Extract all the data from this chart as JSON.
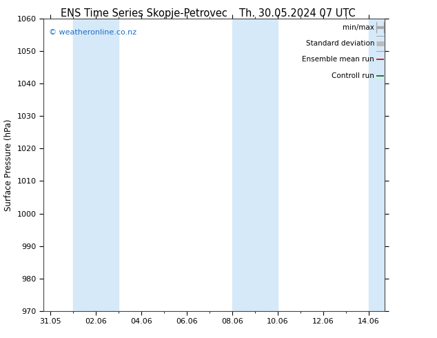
{
  "title": "ENS Time Series Skopje-Petrovec",
  "title2": "Th. 30.05.2024 07 UTC",
  "ylabel": "Surface Pressure (hPa)",
  "ylim": [
    970,
    1060
  ],
  "yticks": [
    970,
    980,
    990,
    1000,
    1010,
    1020,
    1030,
    1040,
    1050,
    1060
  ],
  "xtick_labels": [
    "31.05",
    "02.06",
    "04.06",
    "06.06",
    "08.06",
    "10.06",
    "12.06",
    "14.06"
  ],
  "xtick_positions": [
    0,
    2,
    4,
    6,
    8,
    10,
    12,
    14
  ],
  "xlim": [
    -0.3,
    14.7
  ],
  "shaded_regions": [
    {
      "xmin": 1.0,
      "xmax": 3.0,
      "color": "#d6e9f8"
    },
    {
      "xmin": 8.0,
      "xmax": 10.0,
      "color": "#d6e9f8"
    },
    {
      "xmin": 14.0,
      "xmax": 14.7,
      "color": "#d6e9f8"
    }
  ],
  "watermark": "© weatheronline.co.nz",
  "legend_entries": [
    {
      "label": "min/max",
      "color": "#aaaaaa",
      "lw": 3,
      "style": "minmax"
    },
    {
      "label": "Standard deviation",
      "color": "#bbbbbb",
      "lw": 5,
      "style": "fill"
    },
    {
      "label": "Ensemble mean run",
      "color": "#cc0000",
      "lw": 1.2,
      "style": "line"
    },
    {
      "label": "Controll run",
      "color": "#006600",
      "lw": 1.2,
      "style": "line"
    }
  ],
  "background_color": "#ffffff",
  "plot_bg_color": "#ffffff",
  "title_fontsize": 10.5,
  "axis_label_fontsize": 8.5,
  "tick_fontsize": 8,
  "legend_fontsize": 7.5,
  "watermark_fontsize": 8
}
